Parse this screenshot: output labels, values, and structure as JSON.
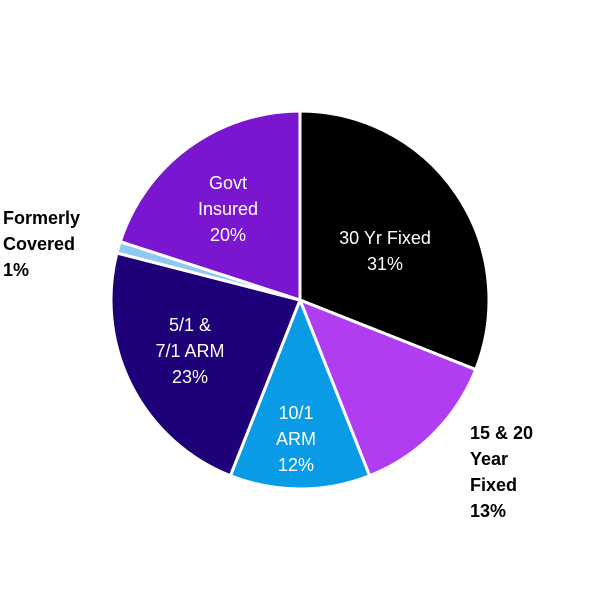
{
  "chart_data": {
    "type": "pie",
    "start_angle_deg": 0,
    "direction": "clockwise",
    "slices": [
      {
        "label_lines": [
          "30 Yr Fixed",
          "31%"
        ],
        "value": 31,
        "color": "#000000",
        "label_position": "inside"
      },
      {
        "label_lines": [
          "15 & 20",
          "Year",
          "Fixed",
          "13%"
        ],
        "value": 13,
        "color": "#b03df0",
        "label_position": "outside"
      },
      {
        "label_lines": [
          "10/1",
          "ARM",
          "12%"
        ],
        "value": 12,
        "color": "#0a9be6",
        "label_position": "inside"
      },
      {
        "label_lines": [
          "5/1 &",
          "7/1 ARM",
          "23%"
        ],
        "value": 23,
        "color": "#1e0078",
        "label_position": "inside"
      },
      {
        "label_lines": [
          "Formerly",
          "Covered",
          "1%"
        ],
        "value": 1,
        "color": "#8ec9f5",
        "label_position": "outside"
      },
      {
        "label_lines": [
          "Govt",
          "Insured",
          "20%"
        ],
        "value": 20,
        "color": "#7a16cf",
        "label_position": "inside"
      }
    ]
  }
}
